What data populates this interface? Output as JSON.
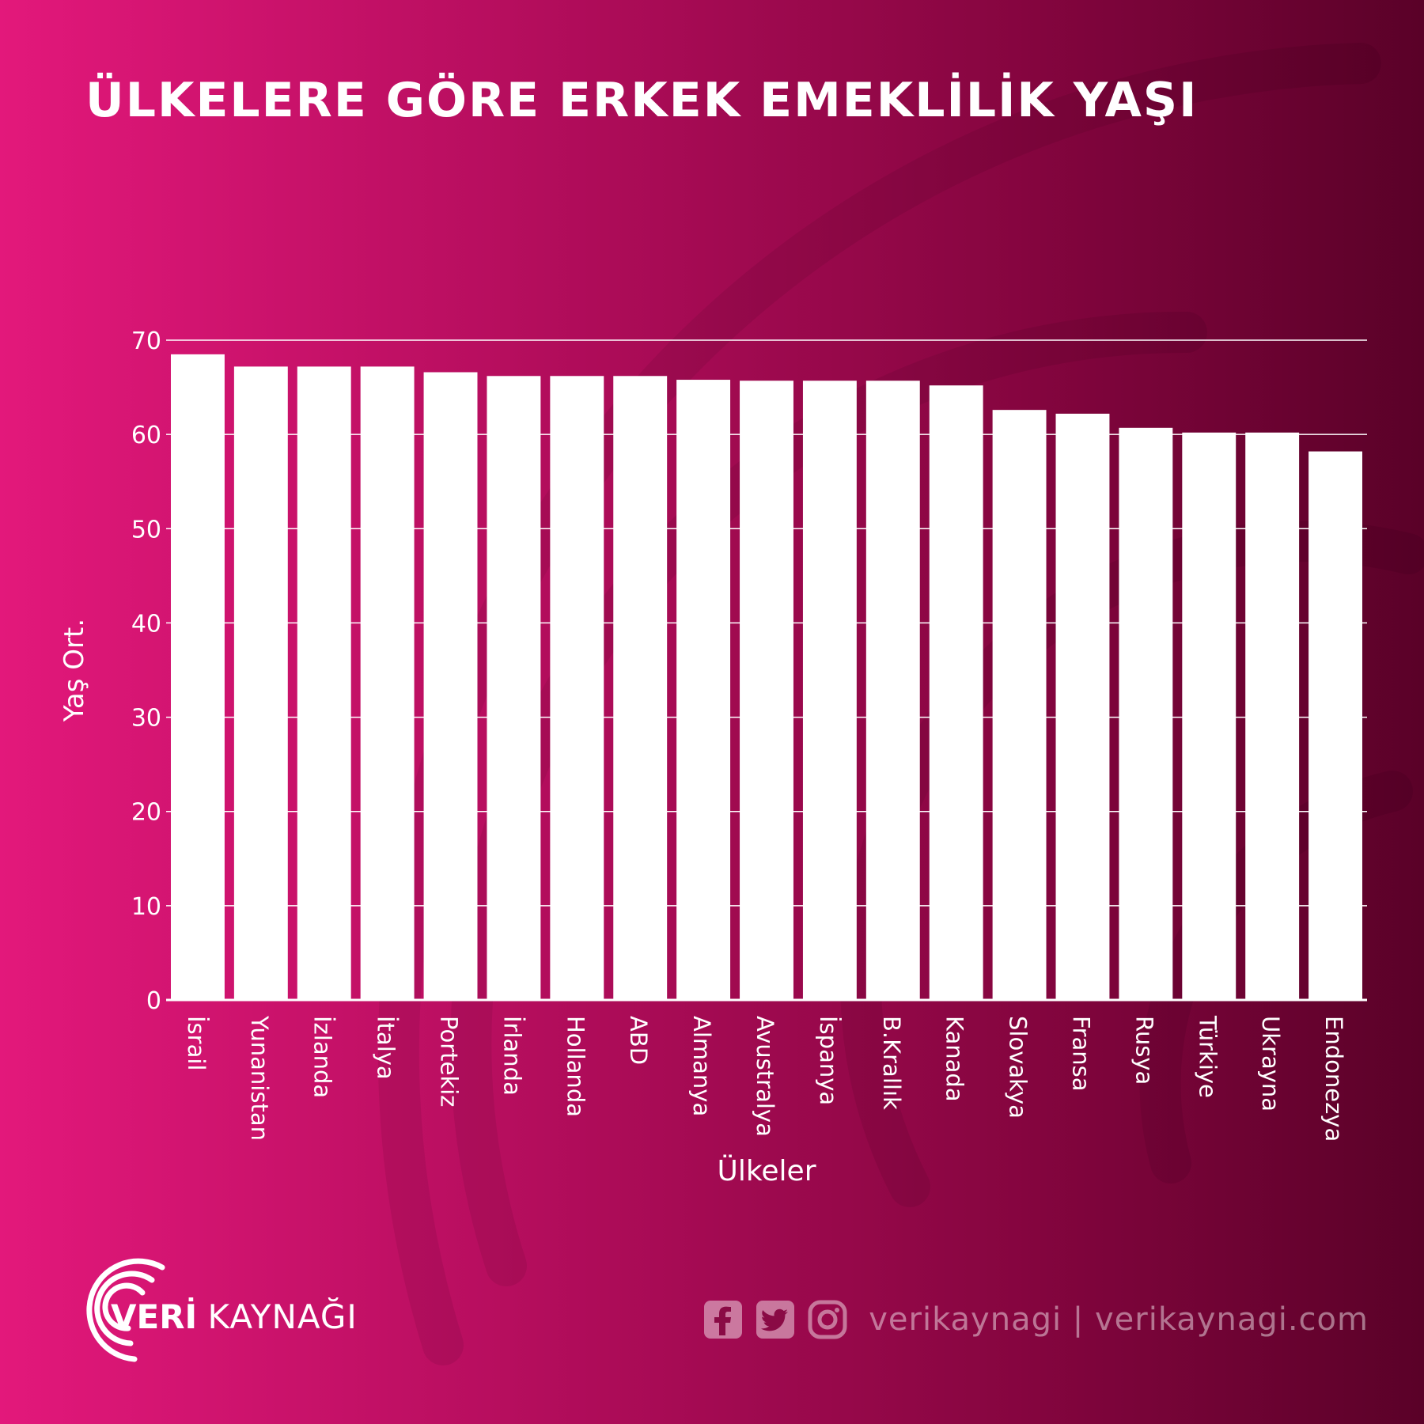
{
  "colors": {
    "bar": "#ffffff",
    "grid": "#ffffff",
    "text": "#ffffff",
    "background_left": "#e3187b",
    "background_right": "#5a0128"
  },
  "chart_data": {
    "type": "bar",
    "title": "ÜLKELERE GÖRE ERKEK EMEKLİLİK YAŞI",
    "xlabel": "Ülkeler",
    "ylabel": "Yaş Ort.",
    "ylim": [
      0,
      70
    ],
    "yticks": [
      0,
      10,
      20,
      30,
      40,
      50,
      60,
      70
    ],
    "grid": true,
    "categories": [
      "İsrail",
      "Yunanistan",
      "İzlanda",
      "İtalya",
      "Portekiz",
      "İrlanda",
      "Hollanda",
      "ABD",
      "Almanya",
      "Avustralya",
      "İspanya",
      "B.Krallık",
      "Kanada",
      "Slovakya",
      "Fransa",
      "Rusya",
      "Türkiye",
      "Ukrayna",
      "Endonezya"
    ],
    "values": [
      68.5,
      67.2,
      67.2,
      67.2,
      66.6,
      66.2,
      66.2,
      66.2,
      65.8,
      65.7,
      65.7,
      65.7,
      65.2,
      62.6,
      62.2,
      60.7,
      60.2,
      60.2,
      58.2
    ]
  },
  "footer": {
    "brand_bold": "VERİ",
    "brand_light": "KAYNAĞI",
    "social_icons": [
      "facebook-icon",
      "twitter-icon",
      "instagram-icon"
    ],
    "social_text": "verikaynagi | verikaynagi.com"
  }
}
